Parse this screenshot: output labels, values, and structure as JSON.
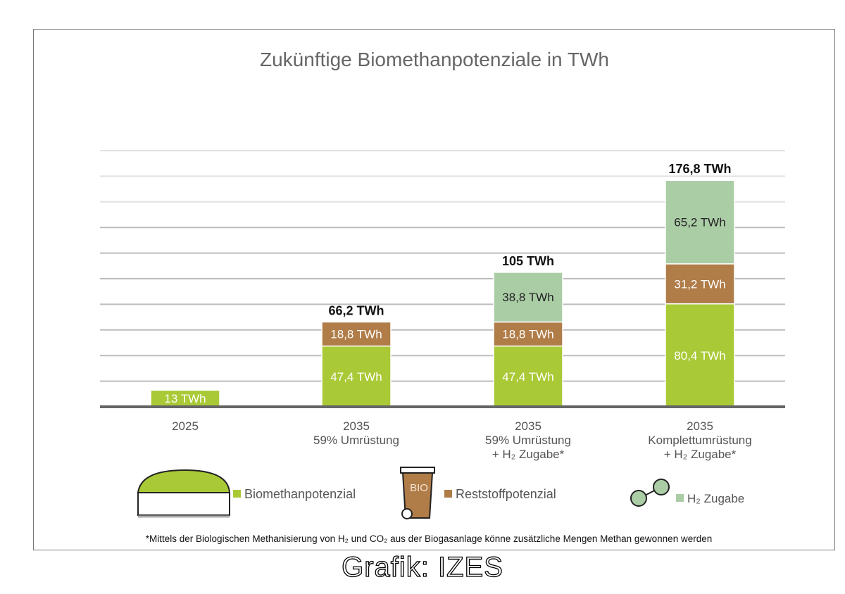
{
  "chart_data": {
    "type": "bar",
    "stacked": true,
    "title": "Zukünftige Biomethanpotenziale in TWh",
    "categories": [
      [
        "2025"
      ],
      [
        "2035",
        "59% Umrüstung"
      ],
      [
        "2035",
        "59% Umrüstung",
        "+ H₂ Zugabe*"
      ],
      [
        "2035",
        "Komplettumrüstung",
        "+ H₂ Zugabe*"
      ]
    ],
    "series": [
      {
        "name": "Biomethanpotenzial",
        "color": "#aac936",
        "values": [
          13,
          47.4,
          47.4,
          80.4
        ],
        "labels": [
          "13 TWh",
          "47,4 TWh",
          "47,4 TWh",
          "80,4 TWh"
        ]
      },
      {
        "name": "Reststoffpotenzial",
        "color": "#b07c48",
        "values": [
          0,
          18.8,
          18.8,
          31.2
        ],
        "labels": [
          "",
          "18,8 TWh",
          "18,8 TWh",
          "31,2 TWh"
        ]
      },
      {
        "name": "H₂ Zugabe",
        "color": "#abcda6",
        "values": [
          0,
          0,
          38.8,
          65.2
        ],
        "labels": [
          "",
          "",
          "38,8 TWh",
          "65,2 TWh"
        ]
      }
    ],
    "totals": [
      "",
      "66,2 TWh",
      "105 TWh",
      "176,8 TWh"
    ],
    "ylim": [
      0,
      200
    ],
    "grid_step": 20,
    "grid": true,
    "legend_placement": "bottom",
    "footnote": "*Mittels der Biologischen Methanisierung von H₂ und CO₂ aus der Biogasanlage könne zusätzliche Mengen Methan gewonnen werden",
    "bio_bin_label": "BIO"
  },
  "credit": "Grafik: IZES"
}
